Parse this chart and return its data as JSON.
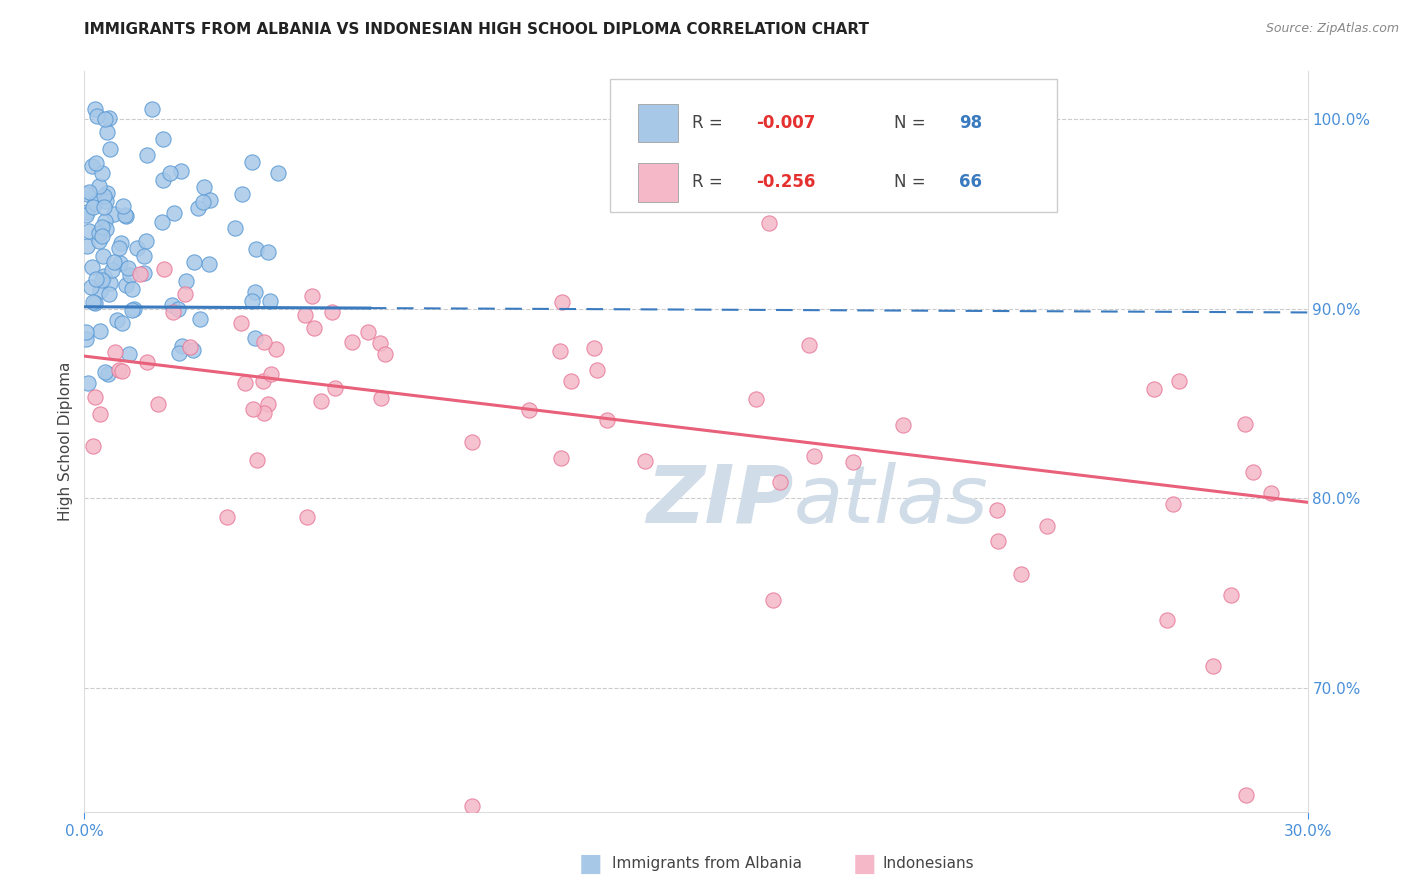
{
  "title": "IMMIGRANTS FROM ALBANIA VS INDONESIAN HIGH SCHOOL DIPLOMA CORRELATION CHART",
  "source": "Source: ZipAtlas.com",
  "ylabel": "High School Diploma",
  "right_yticks": [
    "100.0%",
    "90.0%",
    "80.0%",
    "70.0%"
  ],
  "right_ytick_vals": [
    1.0,
    0.9,
    0.8,
    0.7
  ],
  "blue_color": "#a8c8e8",
  "pink_color": "#f4b8c8",
  "blue_edge_color": "#5b9bd5",
  "pink_edge_color": "#e87b9a",
  "blue_line_color": "#3a7abf",
  "pink_line_color": "#e8607a",
  "watermark_color": "#d0dce8",
  "xlim": [
    0.0,
    0.3
  ],
  "ylim": [
    0.635,
    1.025
  ],
  "albania_R": -0.007,
  "albania_N": 98,
  "indonesia_R": -0.256,
  "indonesia_N": 66,
  "blue_trend": [
    0.0,
    0.901,
    0.3,
    0.898
  ],
  "pink_trend": [
    0.0,
    0.875,
    0.3,
    0.798
  ]
}
